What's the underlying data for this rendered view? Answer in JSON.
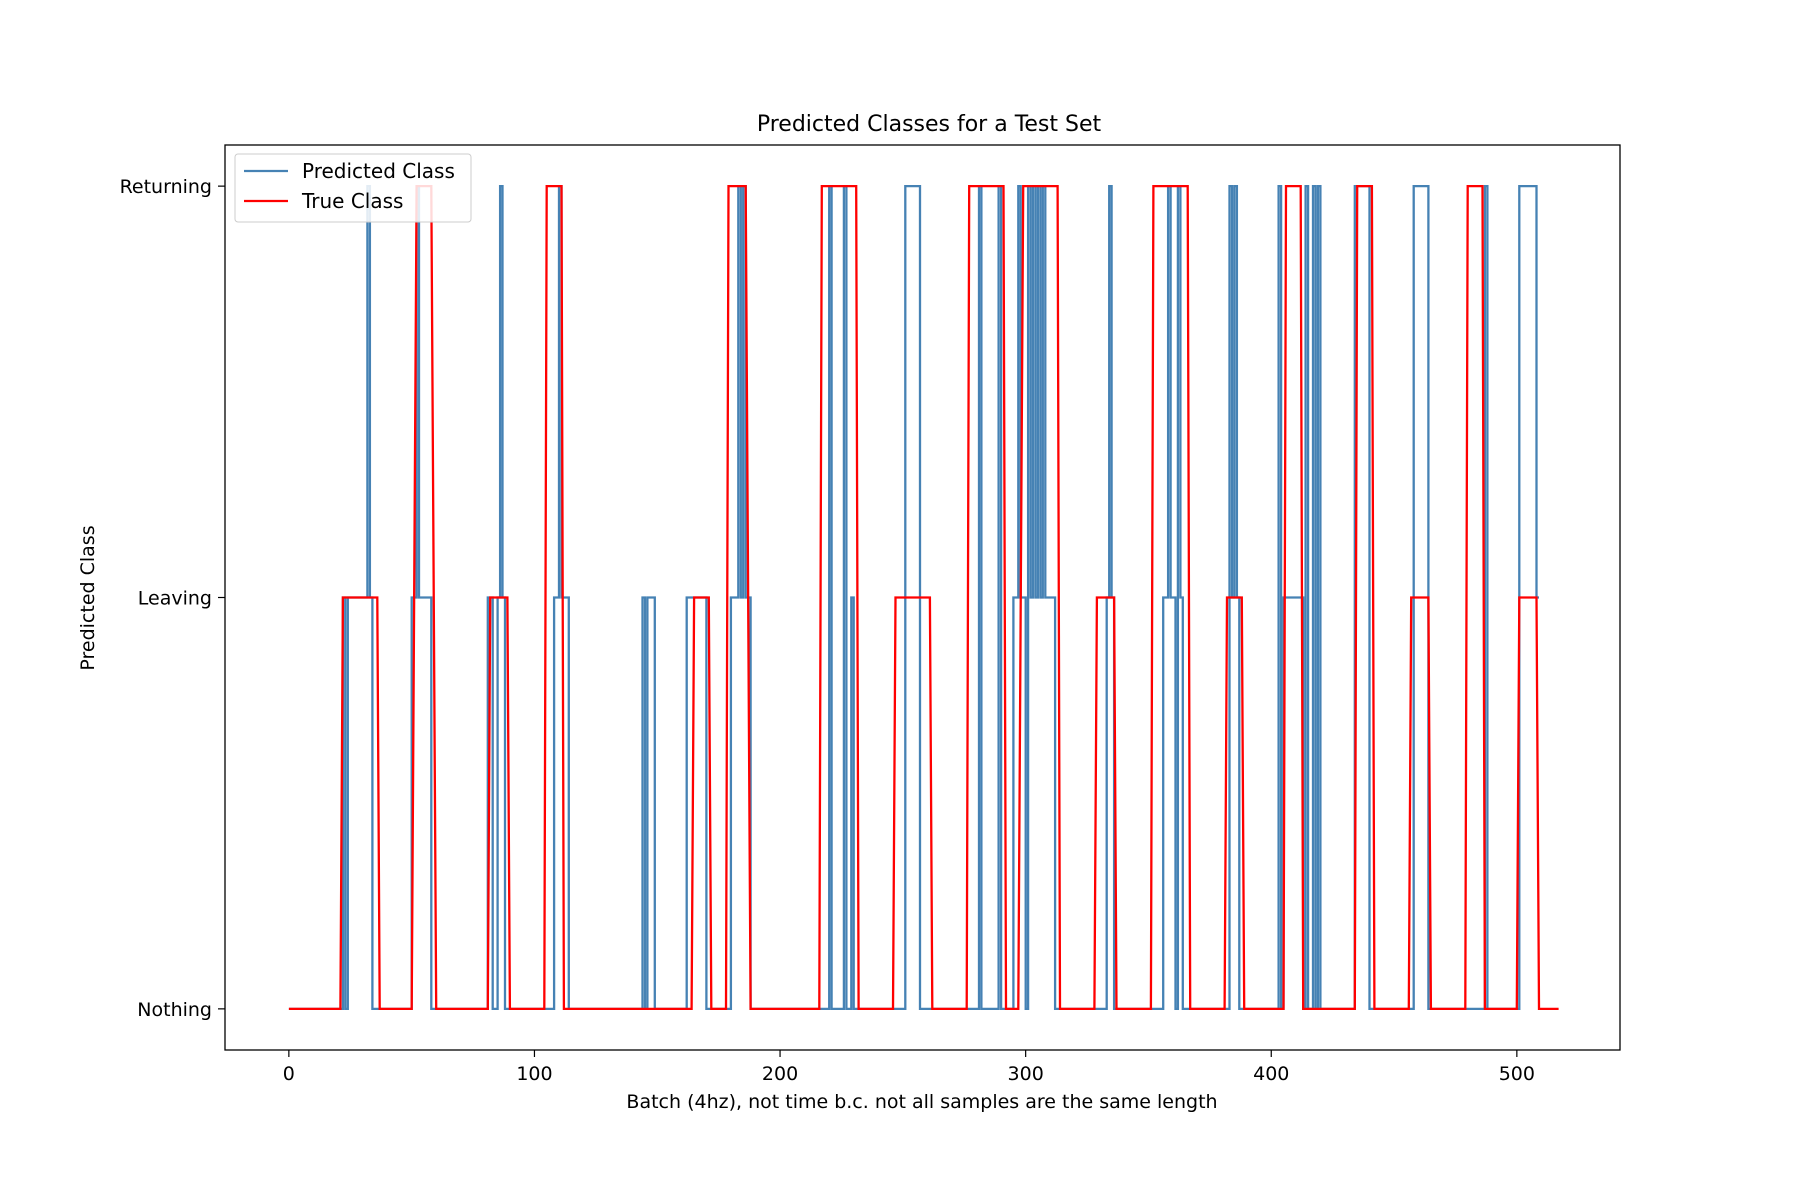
{
  "chart_data": {
    "type": "line",
    "title": "Predicted Classes for a Test Set",
    "xlabel": "Batch (4hz), not time b.c. not all samples are the same length",
    "ylabel": "Predicted Class",
    "xlim": [
      -26,
      542
    ],
    "ylim": [
      -0.1,
      2.1
    ],
    "x_ticks": [
      0,
      100,
      200,
      300,
      400,
      500
    ],
    "y_ticks": [
      {
        "value": 0,
        "label": "Nothing"
      },
      {
        "value": 1,
        "label": "Leaving"
      },
      {
        "value": 2,
        "label": "Returning"
      }
    ],
    "grid": false,
    "legend_position": "top-left",
    "series": [
      {
        "name": "Predicted Class",
        "color": "#4682b4",
        "points": [
          [
            0,
            0
          ],
          [
            22,
            0
          ],
          [
            22,
            1
          ],
          [
            23,
            1
          ],
          [
            23,
            0
          ],
          [
            24,
            0
          ],
          [
            24,
            1
          ],
          [
            32,
            1
          ],
          [
            32,
            2
          ],
          [
            33,
            2
          ],
          [
            33,
            1
          ],
          [
            34,
            1
          ],
          [
            34,
            0
          ],
          [
            50,
            0
          ],
          [
            50,
            1
          ],
          [
            52,
            1
          ],
          [
            52,
            2
          ],
          [
            53,
            2
          ],
          [
            53,
            1
          ],
          [
            58,
            1
          ],
          [
            58,
            0
          ],
          [
            81,
            0
          ],
          [
            81,
            1
          ],
          [
            83,
            1
          ],
          [
            83,
            0
          ],
          [
            85,
            0
          ],
          [
            85,
            1
          ],
          [
            86,
            1
          ],
          [
            86,
            2
          ],
          [
            87,
            2
          ],
          [
            87,
            1
          ],
          [
            88,
            1
          ],
          [
            88,
            0
          ],
          [
            108,
            0
          ],
          [
            108,
            1
          ],
          [
            110,
            1
          ],
          [
            110,
            2
          ],
          [
            111,
            2
          ],
          [
            111,
            1
          ],
          [
            114,
            1
          ],
          [
            114,
            0
          ],
          [
            144,
            0
          ],
          [
            144,
            1
          ],
          [
            145,
            1
          ],
          [
            145,
            0
          ],
          [
            146,
            0
          ],
          [
            146,
            1
          ],
          [
            149,
            1
          ],
          [
            149,
            0
          ],
          [
            162,
            0
          ],
          [
            162,
            1
          ],
          [
            170,
            1
          ],
          [
            170,
            0
          ],
          [
            180,
            0
          ],
          [
            180,
            1
          ],
          [
            183,
            1
          ],
          [
            183,
            2
          ],
          [
            184,
            2
          ],
          [
            184,
            1
          ],
          [
            185,
            1
          ],
          [
            185,
            2
          ],
          [
            186,
            2
          ],
          [
            186,
            1
          ],
          [
            188,
            1
          ],
          [
            188,
            0
          ],
          [
            220,
            0
          ],
          [
            220,
            2
          ],
          [
            221,
            2
          ],
          [
            221,
            0
          ],
          [
            226,
            0
          ],
          [
            226,
            2
          ],
          [
            227,
            2
          ],
          [
            227,
            0
          ],
          [
            229,
            0
          ],
          [
            229,
            1
          ],
          [
            230,
            1
          ],
          [
            230,
            0
          ],
          [
            251,
            0
          ],
          [
            251,
            2
          ],
          [
            257,
            2
          ],
          [
            257,
            0
          ],
          [
            281,
            0
          ],
          [
            281,
            2
          ],
          [
            282,
            2
          ],
          [
            282,
            0
          ],
          [
            289,
            0
          ],
          [
            289,
            2
          ],
          [
            290,
            2
          ],
          [
            290,
            0
          ],
          [
            295,
            0
          ],
          [
            295,
            1
          ],
          [
            297,
            1
          ],
          [
            297,
            2
          ],
          [
            298,
            2
          ],
          [
            298,
            1
          ],
          [
            300,
            1
          ],
          [
            300,
            0
          ],
          [
            301,
            0
          ],
          [
            301,
            2
          ],
          [
            302,
            2
          ],
          [
            302,
            1
          ],
          [
            303,
            1
          ],
          [
            303,
            2
          ],
          [
            304,
            2
          ],
          [
            304,
            1
          ],
          [
            305,
            1
          ],
          [
            305,
            2
          ],
          [
            306,
            2
          ],
          [
            306,
            1
          ],
          [
            307,
            1
          ],
          [
            307,
            2
          ],
          [
            308,
            2
          ],
          [
            308,
            1
          ],
          [
            312,
            1
          ],
          [
            312,
            0
          ],
          [
            333,
            0
          ],
          [
            333,
            1
          ],
          [
            334,
            1
          ],
          [
            334,
            2
          ],
          [
            335,
            2
          ],
          [
            335,
            1
          ],
          [
            336,
            1
          ],
          [
            336,
            0
          ],
          [
            356,
            0
          ],
          [
            356,
            1
          ],
          [
            358,
            1
          ],
          [
            358,
            2
          ],
          [
            359,
            2
          ],
          [
            359,
            1
          ],
          [
            361,
            1
          ],
          [
            361,
            0
          ],
          [
            362,
            0
          ],
          [
            362,
            2
          ],
          [
            363,
            2
          ],
          [
            363,
            1
          ],
          [
            364,
            1
          ],
          [
            364,
            0
          ],
          [
            383,
            0
          ],
          [
            383,
            2
          ],
          [
            384,
            2
          ],
          [
            384,
            1
          ],
          [
            385,
            1
          ],
          [
            385,
            2
          ],
          [
            386,
            2
          ],
          [
            386,
            1
          ],
          [
            387,
            1
          ],
          [
            387,
            0
          ],
          [
            403,
            0
          ],
          [
            403,
            2
          ],
          [
            404,
            2
          ],
          [
            404,
            0
          ],
          [
            405,
            0
          ],
          [
            405,
            1
          ],
          [
            413,
            1
          ],
          [
            413,
            0
          ],
          [
            414,
            0
          ],
          [
            414,
            2
          ],
          [
            415,
            2
          ],
          [
            415,
            0
          ],
          [
            417,
            0
          ],
          [
            417,
            2
          ],
          [
            418,
            2
          ],
          [
            418,
            0
          ],
          [
            419,
            0
          ],
          [
            419,
            2
          ],
          [
            420,
            2
          ],
          [
            420,
            0
          ],
          [
            434,
            0
          ],
          [
            434,
            2
          ],
          [
            440,
            2
          ],
          [
            440,
            0
          ],
          [
            458,
            0
          ],
          [
            458,
            2
          ],
          [
            464,
            2
          ],
          [
            464,
            0
          ],
          [
            487,
            0
          ],
          [
            487,
            2
          ],
          [
            488,
            2
          ],
          [
            488,
            0
          ],
          [
            501,
            0
          ],
          [
            501,
            2
          ],
          [
            508,
            2
          ],
          [
            508,
            1
          ],
          [
            509,
            1
          ]
        ]
      },
      {
        "name": "True Class",
        "color": "#ff0000",
        "points": [
          [
            0,
            0
          ],
          [
            21,
            0
          ],
          [
            22,
            1
          ],
          [
            36,
            1
          ],
          [
            37,
            0
          ],
          [
            50,
            0
          ],
          [
            52,
            2
          ],
          [
            58,
            2
          ],
          [
            60,
            0
          ],
          [
            81,
            0
          ],
          [
            82,
            1
          ],
          [
            89,
            1
          ],
          [
            90,
            0
          ],
          [
            104,
            0
          ],
          [
            105,
            2
          ],
          [
            111,
            2
          ],
          [
            112,
            0
          ],
          [
            164,
            0
          ],
          [
            165,
            1
          ],
          [
            171,
            1
          ],
          [
            172,
            0
          ],
          [
            178,
            0
          ],
          [
            179,
            2
          ],
          [
            186,
            2
          ],
          [
            188,
            0
          ],
          [
            216,
            0
          ],
          [
            217,
            2
          ],
          [
            231,
            2
          ],
          [
            232,
            0
          ],
          [
            246,
            0
          ],
          [
            247,
            1
          ],
          [
            261,
            1
          ],
          [
            262,
            0
          ],
          [
            276,
            0
          ],
          [
            277,
            2
          ],
          [
            291,
            2
          ],
          [
            292,
            0
          ],
          [
            297,
            0
          ],
          [
            299,
            2
          ],
          [
            313,
            2
          ],
          [
            314,
            0
          ],
          [
            328,
            0
          ],
          [
            329,
            1
          ],
          [
            336,
            1
          ],
          [
            337,
            0
          ],
          [
            351,
            0
          ],
          [
            352,
            2
          ],
          [
            366,
            2
          ],
          [
            367,
            0
          ],
          [
            381,
            0
          ],
          [
            382,
            1
          ],
          [
            388,
            1
          ],
          [
            389,
            0
          ],
          [
            405,
            0
          ],
          [
            406,
            2
          ],
          [
            412,
            2
          ],
          [
            413,
            0
          ],
          [
            434,
            0
          ],
          [
            435,
            2
          ],
          [
            441,
            2
          ],
          [
            442,
            0
          ],
          [
            456,
            0
          ],
          [
            457,
            1
          ],
          [
            464,
            1
          ],
          [
            465,
            0
          ],
          [
            479,
            0
          ],
          [
            480,
            2
          ],
          [
            486,
            2
          ],
          [
            487,
            0
          ],
          [
            500,
            0
          ],
          [
            501,
            1
          ],
          [
            508,
            1
          ],
          [
            509,
            0
          ],
          [
            517,
            0
          ]
        ]
      }
    ]
  }
}
